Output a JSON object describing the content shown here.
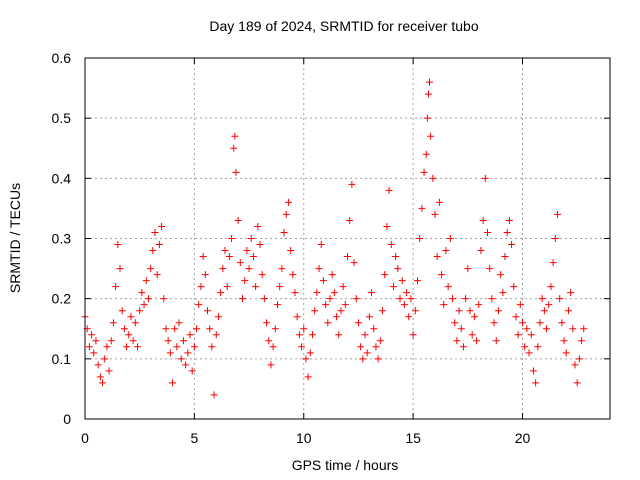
{
  "chart_data": {
    "type": "scatter",
    "title": "Day 189 of 2024, SRMTID for receiver tubo",
    "xlabel": "GPS time / hours",
    "ylabel": "SRMTID / TECUs",
    "xlim": [
      0,
      24
    ],
    "ylim": [
      0,
      0.6
    ],
    "xticks": [
      "0",
      "5",
      "10",
      "15",
      "20"
    ],
    "yticks": [
      "0",
      "0.1",
      "0.2",
      "0.3",
      "0.4",
      "0.5",
      "0.6"
    ],
    "grid": true,
    "marker": "+",
    "series": [
      {
        "name": "SRMTID",
        "color": "#ff0000",
        "points": [
          [
            0.0,
            0.17
          ],
          [
            0.1,
            0.15
          ],
          [
            0.2,
            0.12
          ],
          [
            0.3,
            0.14
          ],
          [
            0.4,
            0.11
          ],
          [
            0.5,
            0.13
          ],
          [
            0.6,
            0.09
          ],
          [
            0.7,
            0.07
          ],
          [
            0.8,
            0.06
          ],
          [
            0.9,
            0.1
          ],
          [
            1.0,
            0.12
          ],
          [
            1.1,
            0.08
          ],
          [
            1.2,
            0.13
          ],
          [
            1.3,
            0.16
          ],
          [
            1.4,
            0.22
          ],
          [
            1.5,
            0.29
          ],
          [
            1.6,
            0.25
          ],
          [
            1.7,
            0.18
          ],
          [
            1.8,
            0.15
          ],
          [
            1.9,
            0.12
          ],
          [
            2.0,
            0.14
          ],
          [
            2.1,
            0.17
          ],
          [
            2.2,
            0.13
          ],
          [
            2.3,
            0.16
          ],
          [
            2.4,
            0.12
          ],
          [
            2.5,
            0.18
          ],
          [
            2.6,
            0.21
          ],
          [
            2.7,
            0.19
          ],
          [
            2.8,
            0.23
          ],
          [
            2.9,
            0.2
          ],
          [
            3.0,
            0.25
          ],
          [
            3.1,
            0.28
          ],
          [
            3.2,
            0.31
          ],
          [
            3.3,
            0.24
          ],
          [
            3.4,
            0.29
          ],
          [
            3.5,
            0.32
          ],
          [
            3.6,
            0.2
          ],
          [
            3.7,
            0.15
          ],
          [
            3.8,
            0.13
          ],
          [
            3.9,
            0.11
          ],
          [
            4.0,
            0.06
          ],
          [
            4.1,
            0.15
          ],
          [
            4.2,
            0.12
          ],
          [
            4.3,
            0.16
          ],
          [
            4.4,
            0.1
          ],
          [
            4.5,
            0.13
          ],
          [
            4.6,
            0.09
          ],
          [
            4.7,
            0.11
          ],
          [
            4.8,
            0.14
          ],
          [
            4.9,
            0.08
          ],
          [
            5.0,
            0.12
          ],
          [
            5.1,
            0.15
          ],
          [
            5.2,
            0.19
          ],
          [
            5.3,
            0.22
          ],
          [
            5.4,
            0.27
          ],
          [
            5.5,
            0.24
          ],
          [
            5.6,
            0.18
          ],
          [
            5.7,
            0.15
          ],
          [
            5.8,
            0.12
          ],
          [
            5.9,
            0.04
          ],
          [
            6.0,
            0.14
          ],
          [
            6.1,
            0.17
          ],
          [
            6.2,
            0.21
          ],
          [
            6.3,
            0.25
          ],
          [
            6.4,
            0.28
          ],
          [
            6.5,
            0.22
          ],
          [
            6.6,
            0.27
          ],
          [
            6.7,
            0.3
          ],
          [
            6.8,
            0.45
          ],
          [
            6.85,
            0.47
          ],
          [
            6.9,
            0.41
          ],
          [
            7.0,
            0.33
          ],
          [
            7.1,
            0.26
          ],
          [
            7.2,
            0.2
          ],
          [
            7.3,
            0.23
          ],
          [
            7.4,
            0.28
          ],
          [
            7.5,
            0.25
          ],
          [
            7.6,
            0.3
          ],
          [
            7.7,
            0.27
          ],
          [
            7.8,
            0.22
          ],
          [
            7.9,
            0.32
          ],
          [
            8.0,
            0.29
          ],
          [
            8.1,
            0.24
          ],
          [
            8.2,
            0.2
          ],
          [
            8.3,
            0.16
          ],
          [
            8.4,
            0.13
          ],
          [
            8.5,
            0.09
          ],
          [
            8.6,
            0.12
          ],
          [
            8.7,
            0.15
          ],
          [
            8.8,
            0.19
          ],
          [
            8.9,
            0.22
          ],
          [
            9.0,
            0.25
          ],
          [
            9.1,
            0.31
          ],
          [
            9.2,
            0.34
          ],
          [
            9.3,
            0.36
          ],
          [
            9.4,
            0.28
          ],
          [
            9.5,
            0.24
          ],
          [
            9.6,
            0.21
          ],
          [
            9.7,
            0.17
          ],
          [
            9.8,
            0.14
          ],
          [
            9.9,
            0.12
          ],
          [
            10.0,
            0.15
          ],
          [
            10.1,
            0.1
          ],
          [
            10.2,
            0.07
          ],
          [
            10.3,
            0.11
          ],
          [
            10.4,
            0.14
          ],
          [
            10.5,
            0.18
          ],
          [
            10.6,
            0.21
          ],
          [
            10.7,
            0.25
          ],
          [
            10.8,
            0.29
          ],
          [
            10.9,
            0.23
          ],
          [
            11.0,
            0.19
          ],
          [
            11.1,
            0.16
          ],
          [
            11.2,
            0.2
          ],
          [
            11.3,
            0.24
          ],
          [
            11.4,
            0.21
          ],
          [
            11.5,
            0.17
          ],
          [
            11.6,
            0.14
          ],
          [
            11.7,
            0.18
          ],
          [
            11.8,
            0.22
          ],
          [
            11.9,
            0.19
          ],
          [
            12.0,
            0.27
          ],
          [
            12.1,
            0.33
          ],
          [
            12.2,
            0.39
          ],
          [
            12.3,
            0.26
          ],
          [
            12.4,
            0.2
          ],
          [
            12.5,
            0.16
          ],
          [
            12.6,
            0.12
          ],
          [
            12.7,
            0.1
          ],
          [
            12.8,
            0.14
          ],
          [
            12.9,
            0.11
          ],
          [
            13.0,
            0.17
          ],
          [
            13.1,
            0.21
          ],
          [
            13.2,
            0.15
          ],
          [
            13.3,
            0.12
          ],
          [
            13.4,
            0.1
          ],
          [
            13.5,
            0.13
          ],
          [
            13.6,
            0.18
          ],
          [
            13.7,
            0.24
          ],
          [
            13.8,
            0.32
          ],
          [
            13.9,
            0.38
          ],
          [
            14.0,
            0.29
          ],
          [
            14.1,
            0.22
          ],
          [
            14.2,
            0.27
          ],
          [
            14.3,
            0.25
          ],
          [
            14.4,
            0.2
          ],
          [
            14.5,
            0.23
          ],
          [
            14.6,
            0.19
          ],
          [
            14.7,
            0.21
          ],
          [
            14.8,
            0.17
          ],
          [
            14.9,
            0.2
          ],
          [
            15.0,
            0.14
          ],
          [
            15.1,
            0.18
          ],
          [
            15.2,
            0.23
          ],
          [
            15.3,
            0.3
          ],
          [
            15.4,
            0.35
          ],
          [
            15.5,
            0.41
          ],
          [
            15.6,
            0.44
          ],
          [
            15.65,
            0.5
          ],
          [
            15.7,
            0.54
          ],
          [
            15.75,
            0.56
          ],
          [
            15.8,
            0.47
          ],
          [
            15.9,
            0.4
          ],
          [
            16.0,
            0.34
          ],
          [
            16.1,
            0.27
          ],
          [
            16.2,
            0.36
          ],
          [
            16.3,
            0.24
          ],
          [
            16.4,
            0.19
          ],
          [
            16.5,
            0.28
          ],
          [
            16.6,
            0.22
          ],
          [
            16.7,
            0.3
          ],
          [
            16.8,
            0.2
          ],
          [
            16.9,
            0.16
          ],
          [
            17.0,
            0.13
          ],
          [
            17.1,
            0.18
          ],
          [
            17.2,
            0.15
          ],
          [
            17.3,
            0.12
          ],
          [
            17.4,
            0.2
          ],
          [
            17.5,
            0.25
          ],
          [
            17.6,
            0.18
          ],
          [
            17.7,
            0.14
          ],
          [
            17.8,
            0.17
          ],
          [
            17.9,
            0.13
          ],
          [
            18.0,
            0.19
          ],
          [
            18.1,
            0.28
          ],
          [
            18.2,
            0.33
          ],
          [
            18.3,
            0.4
          ],
          [
            18.4,
            0.31
          ],
          [
            18.5,
            0.25
          ],
          [
            18.6,
            0.2
          ],
          [
            18.7,
            0.16
          ],
          [
            18.8,
            0.13
          ],
          [
            18.9,
            0.18
          ],
          [
            19.0,
            0.24
          ],
          [
            19.1,
            0.21
          ],
          [
            19.2,
            0.27
          ],
          [
            19.3,
            0.31
          ],
          [
            19.4,
            0.33
          ],
          [
            19.5,
            0.29
          ],
          [
            19.6,
            0.22
          ],
          [
            19.7,
            0.17
          ],
          [
            19.8,
            0.14
          ],
          [
            19.9,
            0.19
          ],
          [
            20.0,
            0.16
          ],
          [
            20.1,
            0.12
          ],
          [
            20.2,
            0.15
          ],
          [
            20.3,
            0.11
          ],
          [
            20.4,
            0.14
          ],
          [
            20.5,
            0.08
          ],
          [
            20.6,
            0.06
          ],
          [
            20.7,
            0.12
          ],
          [
            20.8,
            0.16
          ],
          [
            20.9,
            0.2
          ],
          [
            21.0,
            0.18
          ],
          [
            21.1,
            0.15
          ],
          [
            21.2,
            0.19
          ],
          [
            21.3,
            0.22
          ],
          [
            21.4,
            0.26
          ],
          [
            21.5,
            0.3
          ],
          [
            21.6,
            0.34
          ],
          [
            21.7,
            0.2
          ],
          [
            21.8,
            0.16
          ],
          [
            21.9,
            0.13
          ],
          [
            22.0,
            0.11
          ],
          [
            22.1,
            0.18
          ],
          [
            22.2,
            0.21
          ],
          [
            22.3,
            0.15
          ],
          [
            22.4,
            0.09
          ],
          [
            22.5,
            0.06
          ],
          [
            22.6,
            0.1
          ],
          [
            22.7,
            0.13
          ],
          [
            22.8,
            0.15
          ]
        ]
      }
    ]
  }
}
